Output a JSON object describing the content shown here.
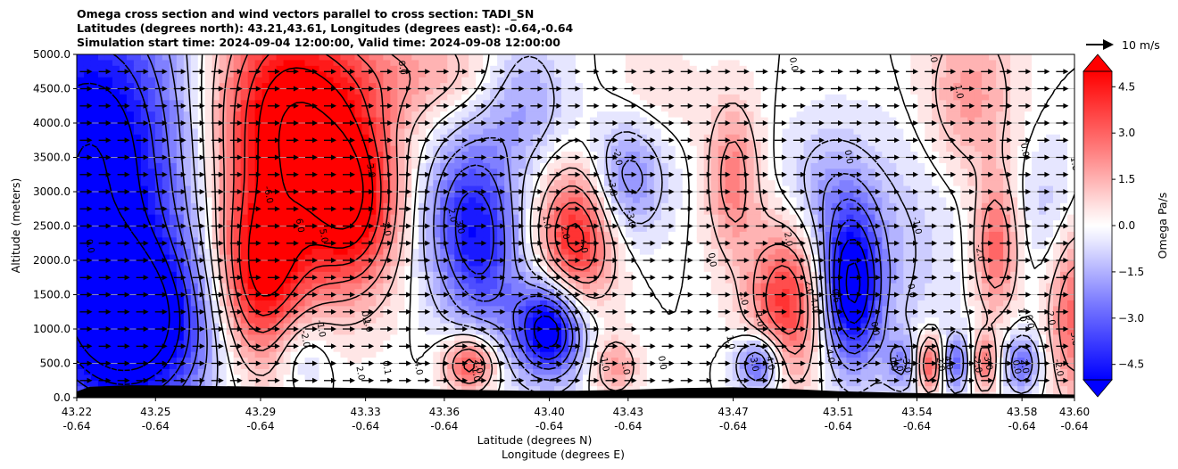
{
  "title_lines": [
    "Omega cross section and wind vectors parallel to cross section: TADI_SN",
    "Latitudes (degrees north): 43.21,43.61, Longitudes (degrees east): -0.64,-0.64",
    "Simulation start time: 2024-09-04 12:00:00, Valid time: 2024-09-08 12:00:00"
  ],
  "quiver_key_label": "10 m/s",
  "colors": {
    "neg_strong": "#0000ff",
    "neutral": "#ffffff",
    "pos_strong": "#ff0000",
    "terrain": "#000000",
    "vector": "#000000"
  },
  "chart_data": {
    "type": "heatmap",
    "title": "Omega cross section and wind vectors parallel to cross section: TADI_SN",
    "ylabel": "Altitude (meters)",
    "xlabel_lines": [
      "Latitude (degrees N)",
      "Longitude (degrees E)"
    ],
    "ylim": [
      0,
      5000
    ],
    "grid": "horizontal",
    "y_ticks": [
      "0.0",
      "500.0",
      "1000.0",
      "1500.0",
      "2000.0",
      "2500.0",
      "3000.0",
      "3500.0",
      "4000.0",
      "4500.0",
      "5000.0"
    ],
    "y_tick_values": [
      0,
      500,
      1000,
      1500,
      2000,
      2500,
      3000,
      3500,
      4000,
      4500,
      5000
    ],
    "x_ticks": [
      {
        "lat": "43.22",
        "lon": "-0.64"
      },
      {
        "lat": "43.25",
        "lon": "-0.64"
      },
      {
        "lat": "43.29",
        "lon": "-0.64"
      },
      {
        "lat": "43.33",
        "lon": "-0.64"
      },
      {
        "lat": "43.36",
        "lon": "-0.64"
      },
      {
        "lat": "43.40",
        "lon": "-0.64"
      },
      {
        "lat": "43.43",
        "lon": "-0.64"
      },
      {
        "lat": "43.47",
        "lon": "-0.64"
      },
      {
        "lat": "43.51",
        "lon": "-0.64"
      },
      {
        "lat": "43.54",
        "lon": "-0.64"
      },
      {
        "lat": "43.58",
        "lon": "-0.64"
      },
      {
        "lat": "43.60",
        "lon": "-0.64"
      }
    ],
    "colorbar": {
      "label": "Omega Pa/s",
      "range": [
        -5.0,
        5.0
      ],
      "ticks": [
        "4.5",
        "3.0",
        "1.5",
        "0.0",
        "−1.5",
        "−3.0",
        "−4.5"
      ],
      "tick_values": [
        4.5,
        3.0,
        1.5,
        0.0,
        -1.5,
        -3.0,
        -4.5
      ],
      "extend": "both"
    },
    "omega_features": [
      {
        "x": 43.225,
        "z": 3500,
        "omega": -6.0,
        "sx": 0.03,
        "sz": 1800
      },
      {
        "x": 43.24,
        "z": 1000,
        "omega": -6.0,
        "sx": 0.022,
        "sz": 900
      },
      {
        "x": 43.3,
        "z": 4000,
        "omega": 6.0,
        "sx": 0.022,
        "sz": 1300
      },
      {
        "x": 43.29,
        "z": 1700,
        "omega": 5.0,
        "sx": 0.013,
        "sz": 900
      },
      {
        "x": 43.325,
        "z": 2800,
        "omega": 4.5,
        "sx": 0.012,
        "sz": 900
      },
      {
        "x": 43.305,
        "z": 700,
        "omega": -1.5,
        "sx": 0.008,
        "sz": 450
      },
      {
        "x": 43.355,
        "z": 4700,
        "omega": 1.5,
        "sx": 0.025,
        "sz": 500
      },
      {
        "x": 43.368,
        "z": 2600,
        "omega": -3.5,
        "sx": 0.012,
        "sz": 900
      },
      {
        "x": 43.377,
        "z": 1900,
        "omega": -2.0,
        "sx": 0.01,
        "sz": 1000
      },
      {
        "x": 43.37,
        "z": 500,
        "omega": 4.0,
        "sx": 0.007,
        "sz": 300
      },
      {
        "x": 43.39,
        "z": 4400,
        "omega": -2.0,
        "sx": 0.012,
        "sz": 700
      },
      {
        "x": 43.4,
        "z": 1000,
        "omega": -6.0,
        "sx": 0.009,
        "sz": 500
      },
      {
        "x": 43.41,
        "z": 2300,
        "omega": 4.5,
        "sx": 0.01,
        "sz": 700
      },
      {
        "x": 43.43,
        "z": 3200,
        "omega": -2.5,
        "sx": 0.01,
        "sz": 600
      },
      {
        "x": 43.425,
        "z": 450,
        "omega": 2.0,
        "sx": 0.006,
        "sz": 300
      },
      {
        "x": 43.44,
        "z": 4400,
        "omega": 0.6,
        "sx": 0.012,
        "sz": 600
      },
      {
        "x": 43.47,
        "z": 3200,
        "omega": 2.5,
        "sx": 0.007,
        "sz": 800
      },
      {
        "x": 43.48,
        "z": 500,
        "omega": -4.0,
        "sx": 0.006,
        "sz": 300
      },
      {
        "x": 43.49,
        "z": 1400,
        "omega": 4.0,
        "sx": 0.01,
        "sz": 800
      },
      {
        "x": 43.515,
        "z": 1600,
        "omega": -6.0,
        "sx": 0.008,
        "sz": 800
      },
      {
        "x": 43.505,
        "z": 3000,
        "omega": -1.5,
        "sx": 0.012,
        "sz": 700
      },
      {
        "x": 43.535,
        "z": 2200,
        "omega": -1.0,
        "sx": 0.015,
        "sz": 1200
      },
      {
        "x": 43.535,
        "z": 500,
        "omega": -2.0,
        "sx": 0.005,
        "sz": 300
      },
      {
        "x": 43.545,
        "z": 500,
        "omega": 4.0,
        "sx": 0.004,
        "sz": 300
      },
      {
        "x": 43.555,
        "z": 500,
        "omega": -3.0,
        "sx": 0.005,
        "sz": 300
      },
      {
        "x": 43.56,
        "z": 4400,
        "omega": 2.0,
        "sx": 0.012,
        "sz": 800
      },
      {
        "x": 43.57,
        "z": 2200,
        "omega": 3.0,
        "sx": 0.006,
        "sz": 700
      },
      {
        "x": 43.565,
        "z": 500,
        "omega": 3.0,
        "sx": 0.004,
        "sz": 300
      },
      {
        "x": 43.58,
        "z": 500,
        "omega": -3.0,
        "sx": 0.005,
        "sz": 300
      },
      {
        "x": 43.6,
        "z": 1200,
        "omega": 3.0,
        "sx": 0.007,
        "sz": 900
      },
      {
        "x": 43.59,
        "z": 2800,
        "omega": -1.0,
        "sx": 0.008,
        "sz": 700
      }
    ],
    "contour_levels": [
      -6.0,
      -5.0,
      -4.0,
      -3.0,
      -2.0,
      -1.0,
      0.0,
      1.0,
      2.0,
      3.0,
      4.0,
      5.0,
      6.0
    ],
    "contour_labels": [
      {
        "text": "0.0",
        "x": 43.224,
        "z": 2200
      },
      {
        "text": "-6.0",
        "x": 43.292,
        "z": 2950
      },
      {
        "text": "6.0",
        "x": 43.304,
        "z": 2500
      },
      {
        "text": "5.0",
        "x": 43.313,
        "z": 2350
      },
      {
        "text": "3.0",
        "x": 43.331,
        "z": 3300
      },
      {
        "text": "2.0",
        "x": 43.337,
        "z": 2450
      },
      {
        "text": "0.0",
        "x": 43.343,
        "z": 4800
      },
      {
        "text": "2.0",
        "x": 43.362,
        "z": 2650
      },
      {
        "text": "3.0",
        "x": 43.365,
        "z": 2480
      },
      {
        "text": "1.0",
        "x": 43.33,
        "z": 1050
      },
      {
        "text": "0.1",
        "x": 43.329,
        "z": 1150
      },
      {
        "text": "-1.0",
        "x": 43.312,
        "z": 1000
      },
      {
        "text": "-2.0",
        "x": 43.306,
        "z": 850
      },
      {
        "text": "2.0",
        "x": 43.327,
        "z": 350
      },
      {
        "text": "0.1",
        "x": 43.337,
        "z": 430
      },
      {
        "text": "-4.0",
        "x": 43.349,
        "z": 450
      },
      {
        "text": "2.0",
        "x": 43.372,
        "z": 450
      },
      {
        "text": "1.0",
        "x": 43.371,
        "z": 330
      },
      {
        "text": "4.0",
        "x": 43.412,
        "z": 2200
      },
      {
        "text": "2.0",
        "x": 43.405,
        "z": 2400
      },
      {
        "text": "1.0",
        "x": 43.398,
        "z": 2550
      },
      {
        "text": "-2.0",
        "x": 43.425,
        "z": 3500
      },
      {
        "text": "-3.0",
        "x": 43.423,
        "z": 3050
      },
      {
        "text": "-3.0",
        "x": 43.43,
        "z": 2600
      },
      {
        "text": "-1.0",
        "x": 43.42,
        "z": 500
      },
      {
        "text": "1.0",
        "x": 43.428,
        "z": 430
      },
      {
        "text": "0.0",
        "x": 43.442,
        "z": 500
      },
      {
        "text": "0.0",
        "x": 43.461,
        "z": 2000
      },
      {
        "text": "1.0",
        "x": 43.468,
        "z": 800
      },
      {
        "text": "2.0",
        "x": 43.473,
        "z": 1440
      },
      {
        "text": "2.0",
        "x": 43.49,
        "z": 2300
      },
      {
        "text": "-3.0",
        "x": 43.477,
        "z": 500
      },
      {
        "text": "-4.0",
        "x": 43.483,
        "z": 520
      },
      {
        "text": "1.0",
        "x": 43.479,
        "z": 1130
      },
      {
        "text": "4.0",
        "x": 43.5,
        "z": 1350
      },
      {
        "text": "2.0",
        "x": 43.498,
        "z": 1600
      },
      {
        "text": "4.0",
        "x": 43.506,
        "z": 600
      },
      {
        "text": "-0.6",
        "x": 43.508,
        "z": 1500
      },
      {
        "text": "0.0",
        "x": 43.492,
        "z": 4850
      },
      {
        "text": "0.0",
        "x": 43.513,
        "z": 3500
      },
      {
        "text": "0.0",
        "x": 43.523,
        "z": 1000
      },
      {
        "text": "-1.0",
        "x": 43.539,
        "z": 2500
      },
      {
        "text": "-1.0",
        "x": 43.532,
        "z": 500
      },
      {
        "text": "-3.0",
        "x": 43.535,
        "z": 480
      },
      {
        "text": "0.0",
        "x": 43.53,
        "z": 480
      },
      {
        "text": "0.0",
        "x": 43.537,
        "z": 1550
      },
      {
        "text": "-1.0",
        "x": 43.545,
        "z": 5000
      },
      {
        "text": "1.0",
        "x": 43.555,
        "z": 4450
      },
      {
        "text": "2.0",
        "x": 43.548,
        "z": 480
      },
      {
        "text": "4.0",
        "x": 43.551,
        "z": 500
      },
      {
        "text": "-2.0",
        "x": 43.563,
        "z": 2100
      },
      {
        "text": "-3.0",
        "x": 43.566,
        "z": 520
      },
      {
        "text": "-2.0",
        "x": 43.562,
        "z": 480
      },
      {
        "text": "0.0",
        "x": 43.58,
        "z": 3600
      },
      {
        "text": "1.0",
        "x": 43.579,
        "z": 1200
      },
      {
        "text": "0.0",
        "x": 43.582,
        "z": 1100
      },
      {
        "text": "2.0",
        "x": 43.59,
        "z": 1150
      },
      {
        "text": "2.0",
        "x": 43.58,
        "z": 450
      },
      {
        "text": "0.0",
        "x": 43.577,
        "z": 440
      },
      {
        "text": "-2.0",
        "x": 43.593,
        "z": 430
      },
      {
        "text": "3.0",
        "x": 43.599,
        "z": 850
      },
      {
        "text": "1.0",
        "x": 43.599,
        "z": 3400
      }
    ],
    "terrain": {
      "x": [
        43.22,
        43.225,
        43.24,
        43.26,
        43.28,
        43.3,
        43.33,
        43.36,
        43.39,
        43.41,
        43.43,
        43.45,
        43.47,
        43.49,
        43.51,
        43.53,
        43.55,
        43.57,
        43.59,
        43.6
      ],
      "z": [
        90,
        160,
        180,
        175,
        165,
        155,
        140,
        120,
        100,
        100,
        115,
        140,
        150,
        130,
        95,
        75,
        60,
        55,
        50,
        45
      ]
    },
    "wind_vectors": {
      "speed_ms": 10,
      "x_spacing_deg": 0.00715,
      "z_spacing_m": 250,
      "z_start_m": 250,
      "z_end_m": 4750
    }
  }
}
